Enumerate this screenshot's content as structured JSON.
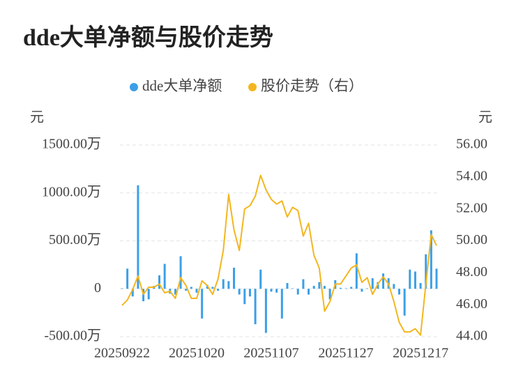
{
  "chart_data": {
    "type": "bar-line",
    "title": "dde大单净额与股价走势",
    "y_label": "元",
    "y2_label": "元",
    "categories": [
      "20250922",
      null,
      null,
      null,
      null,
      null,
      null,
      null,
      null,
      null,
      null,
      null,
      null,
      null,
      "20251020",
      null,
      null,
      null,
      null,
      null,
      null,
      null,
      null,
      null,
      null,
      null,
      null,
      null,
      "20251107",
      null,
      null,
      null,
      null,
      null,
      null,
      null,
      null,
      null,
      null,
      null,
      null,
      null,
      "20251127",
      null,
      null,
      null,
      null,
      null,
      null,
      null,
      null,
      null,
      null,
      null,
      null,
      null,
      "20251217",
      null,
      null,
      null
    ],
    "ylim": [
      -500,
      1500
    ],
    "yticks": [
      {
        "value": -500,
        "label": "-500.00万"
      },
      0,
      {
        "value": 500,
        "label": "500.00万"
      },
      {
        "value": 1000,
        "label": "1000.00万"
      },
      {
        "value": 1500,
        "label": "1500.00万"
      }
    ],
    "y2lim": [
      44,
      56
    ],
    "y2ticks": [
      {
        "value": 44,
        "label": "44.00"
      },
      {
        "value": 46,
        "label": "46.00"
      },
      {
        "value": 48,
        "label": "48.00"
      },
      {
        "value": 50,
        "label": "50.00"
      },
      {
        "value": 52,
        "label": "52.00"
      },
      {
        "value": 54,
        "label": "54.00"
      },
      {
        "value": 56,
        "label": "56.00"
      }
    ],
    "grid": true,
    "series": [
      {
        "name": "dde大单净额",
        "type": "bar",
        "color": "#3b9fe8",
        "values": [
          5,
          210,
          -80,
          1080,
          -130,
          -110,
          30,
          140,
          260,
          -50,
          -60,
          340,
          -20,
          20,
          -40,
          -310,
          40,
          20,
          -20,
          100,
          80,
          220,
          -60,
          -160,
          -80,
          -370,
          200,
          -460,
          -30,
          -40,
          -310,
          60,
          5,
          -60,
          100,
          -60,
          30,
          70,
          30,
          -110,
          90,
          10,
          5,
          20,
          370,
          -30,
          5,
          110,
          70,
          160,
          110,
          50,
          -60,
          -280,
          200,
          180,
          60,
          360,
          610,
          210
        ]
      },
      {
        "name": "股价走势（右）",
        "type": "line",
        "axis": "y2",
        "color": "#f3b61f",
        "values": [
          45.96,
          46.3,
          46.96,
          47.8,
          46.65,
          47.1,
          47.1,
          47.3,
          46.75,
          46.85,
          46.4,
          47.7,
          47.2,
          46.4,
          46.4,
          47.5,
          47.2,
          46.65,
          47.6,
          49.4,
          52.9,
          50.7,
          49.4,
          52.0,
          52.2,
          52.8,
          54.1,
          53.2,
          52.6,
          52.3,
          52.5,
          51.5,
          52.1,
          51.9,
          50.3,
          51.1,
          49.1,
          48.3,
          45.6,
          46.2,
          47.3,
          47.3,
          47.8,
          48.3,
          48.5,
          47.4,
          47.7,
          46.65,
          47.3,
          47.75,
          47.3,
          46.2,
          44.9,
          44.3,
          44.3,
          44.5,
          44.1,
          47.3,
          50.4,
          49.7
        ]
      }
    ]
  }
}
